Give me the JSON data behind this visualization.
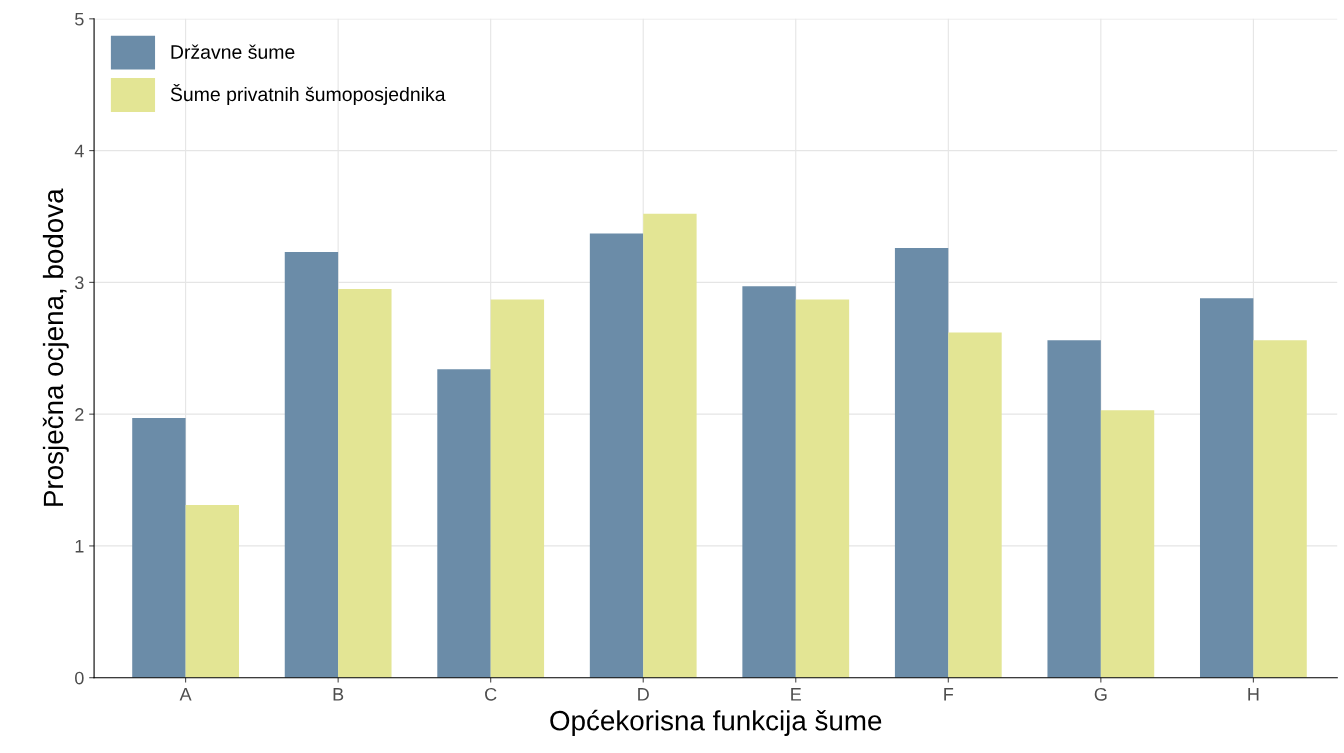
{
  "chart_data": {
    "type": "bar",
    "xlabel": "Općekorisna funkcija šume",
    "ylabel": "Prosječna ocjena, bodova",
    "categories": [
      "A",
      "B",
      "C",
      "D",
      "E",
      "F",
      "G",
      "H"
    ],
    "series": [
      {
        "name": "Državne šume",
        "color": "#6b8ca8",
        "values": [
          1.97,
          3.23,
          2.34,
          3.37,
          2.97,
          3.26,
          2.56,
          2.88
        ]
      },
      {
        "name": "Šume privatnih šumoposjednika",
        "color": "#e3e594",
        "values": [
          1.31,
          2.95,
          2.87,
          3.52,
          2.87,
          2.62,
          2.03,
          2.56
        ]
      }
    ],
    "ylim": [
      0,
      5
    ],
    "yticks": [
      0,
      1,
      2,
      3,
      4,
      5
    ],
    "grid": true,
    "legend": "top left"
  }
}
